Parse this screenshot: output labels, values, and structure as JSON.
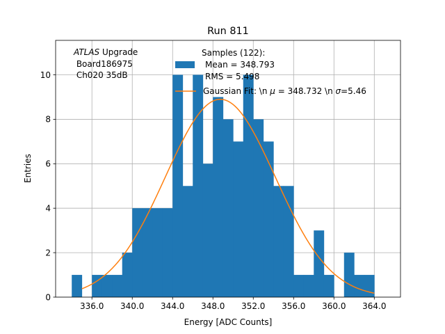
{
  "chart_data": {
    "type": "bar",
    "title": "Run 811",
    "xlabel": "Energy [ADC Counts]",
    "ylabel": "Entries",
    "xlim": [
      332.4,
      366.6
    ],
    "ylim": [
      0,
      11.55
    ],
    "grid": true,
    "x_ticks": [
      336.0,
      340.0,
      344.0,
      348.0,
      352.0,
      356.0,
      360.0,
      364.0
    ],
    "x_tick_labels": [
      "336.0",
      "340.0",
      "344.0",
      "348.0",
      "352.0",
      "356.0",
      "360.0",
      "364.0"
    ],
    "y_ticks": [
      0,
      2,
      4,
      6,
      8,
      10
    ],
    "y_tick_labels": [
      "0",
      "2",
      "4",
      "6",
      "8",
      "10"
    ],
    "bin_edges": [
      334,
      335,
      336,
      337,
      338,
      339,
      340,
      341,
      342,
      343,
      344,
      345,
      346,
      347,
      348,
      349,
      350,
      351,
      352,
      353,
      354,
      355,
      356,
      357,
      358,
      359,
      360,
      361,
      362,
      363,
      364,
      365
    ],
    "values": [
      1,
      0,
      1,
      1,
      1,
      2,
      4,
      4,
      4,
      4,
      10,
      5,
      10,
      6,
      9,
      8,
      7,
      10,
      8,
      7,
      5,
      5,
      1,
      1,
      3,
      1,
      0,
      2,
      1,
      1,
      0
    ],
    "bar_color": "#1f77b4",
    "fit_color": "#ff7f0e",
    "fit": {
      "label": "Gaussian Fit: \\n $\\mu$ = 348.732 \\n $\\sigma$=5.46",
      "mu": 348.732,
      "sigma": 5.46,
      "amplitude": 8.9,
      "x_range": [
        335,
        364
      ]
    },
    "legend": {
      "placement": "top-right",
      "samples_label_lines": [
        "Samples (122):",
        "Mean = 348.793",
        "RMS = 5.498"
      ],
      "fit_label_prefix": "Gaussian Fit: \\n ",
      "fit_mu_symbol": "μ",
      "fit_mu_text": " = 348.732 \\n ",
      "fit_sigma_symbol": "σ",
      "fit_sigma_text": "=5.46"
    },
    "annotation": {
      "experiment": "ATLAS",
      "experiment_suffix": " Upgrade",
      "board": " Board186975",
      "channel": " Ch020 35dB"
    }
  }
}
